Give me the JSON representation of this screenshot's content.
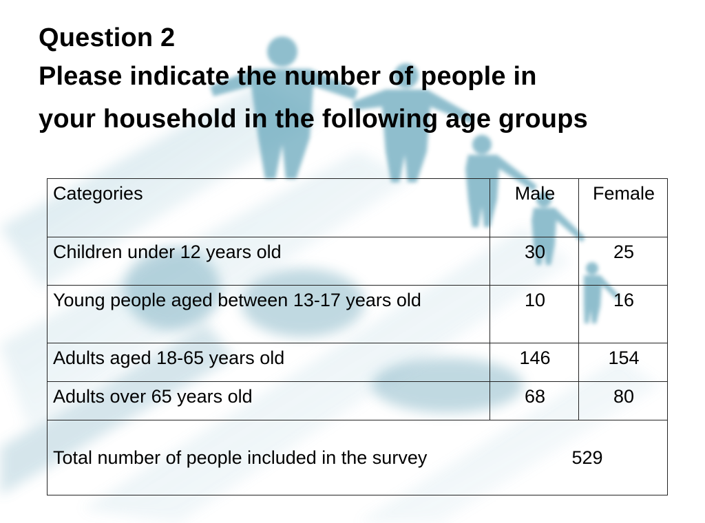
{
  "slide": {
    "title": "Question 2",
    "subtitle_line1": "Please indicate the number of people in",
    "subtitle_line2": "your household in the following age groups"
  },
  "table": {
    "headers": [
      "Categories",
      "Male",
      "Female"
    ],
    "rows": [
      {
        "category": "Children under 12 years old",
        "male": "30",
        "female": "25"
      },
      {
        "category": "Young people aged between 13-17 years old",
        "male": "10",
        "female": "16"
      },
      {
        "category": "Adults aged 18-65 years old",
        "male": "146",
        "female": "154"
      },
      {
        "category": "Adults over 65 years old",
        "male": "68",
        "female": "80"
      }
    ],
    "total_label": "Total number of people included in the survey",
    "total_value": "529"
  },
  "background": {
    "image": "paper-people-chain",
    "accent_color": "#5a9bb0"
  }
}
